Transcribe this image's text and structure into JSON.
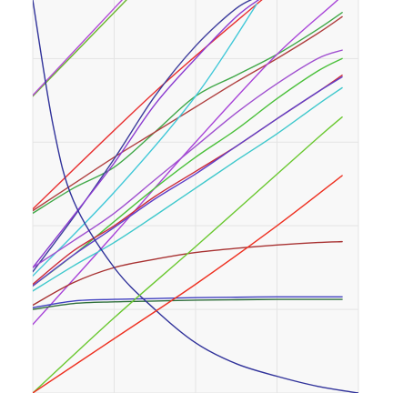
{
  "chart_data": {
    "type": "line",
    "title": "",
    "xlabel": "",
    "ylabel": "",
    "xlim": [
      0,
      4
    ],
    "ylim": [
      0,
      4.7
    ],
    "grid": true,
    "legend": "none",
    "background_color": "#f8f8f8",
    "grid_color": "#e4e4e4",
    "series": [
      {
        "color": "#6ab52e",
        "x": [
          0,
          0.5,
          1.0,
          1.5
        ],
        "y": [
          3.55,
          4.05,
          4.55,
          5.05
        ]
      },
      {
        "color": "#b24ad6",
        "x": [
          0,
          0.5,
          1.0,
          1.5
        ],
        "y": [
          3.56,
          4.08,
          4.6,
          5.12
        ]
      },
      {
        "color": "#e83030",
        "x": [
          0,
          1.5,
          2.75,
          3.2
        ],
        "y": [
          2.2,
          3.6,
          4.65,
          5.0
        ]
      },
      {
        "color": "#40a848",
        "x": [
          0,
          0.5,
          1.0,
          1.5,
          2.0,
          2.5,
          3.0,
          3.5,
          3.8
        ],
        "y": [
          2.15,
          2.45,
          2.7,
          3.12,
          3.55,
          3.8,
          4.05,
          4.35,
          4.55
        ]
      },
      {
        "color": "#b04040",
        "x": [
          0,
          0.5,
          1.0,
          1.5,
          2.0,
          2.5,
          3.0,
          3.5,
          3.8
        ],
        "y": [
          2.18,
          2.5,
          2.82,
          3.12,
          3.42,
          3.72,
          4.0,
          4.3,
          4.5
        ]
      },
      {
        "color": "#3c3c9c",
        "x": [
          0,
          0.5,
          1.0,
          1.5,
          2.0,
          2.5,
          2.8
        ],
        "y": [
          1.45,
          2.1,
          2.8,
          3.55,
          4.15,
          4.6,
          4.75
        ]
      },
      {
        "color": "#8c3cd0",
        "x": [
          0,
          0.5,
          1.0,
          1.5,
          2.0,
          2.5,
          2.8
        ],
        "y": [
          1.5,
          2.12,
          2.75,
          3.45,
          4.0,
          4.5,
          4.72
        ]
      },
      {
        "color": "#40c8d8",
        "x": [
          0,
          1.0,
          2.0,
          2.75
        ],
        "y": [
          1.4,
          2.4,
          3.55,
          4.65
        ]
      },
      {
        "color": "#a844d8",
        "x": [
          0,
          1.0,
          2.0,
          3.0,
          3.8,
          4.0
        ],
        "y": [
          0.82,
          1.9,
          3.0,
          4.05,
          4.75,
          5.0
        ]
      },
      {
        "color": "#a050d0",
        "x": [
          0,
          0.5,
          1.0,
          1.5,
          2.0,
          2.5,
          3.0,
          3.5,
          3.8
        ],
        "y": [
          1.5,
          1.82,
          2.15,
          2.55,
          2.95,
          3.35,
          3.7,
          4.0,
          4.1
        ]
      },
      {
        "color": "#4bc03b",
        "x": [
          0,
          0.5,
          1.0,
          1.5,
          2.0,
          2.5,
          3.0,
          3.5,
          3.8
        ],
        "y": [
          1.28,
          1.65,
          2.05,
          2.45,
          2.82,
          3.15,
          3.52,
          3.85,
          4.0
        ]
      },
      {
        "color": "#cc2b3a",
        "x": [
          0,
          0.5,
          1.0,
          1.5,
          2.0,
          2.5,
          3.0,
          3.5,
          3.8
        ],
        "y": [
          1.3,
          1.7,
          2.0,
          2.35,
          2.65,
          2.95,
          3.28,
          3.6,
          3.8
        ]
      },
      {
        "color": "#6040c8",
        "x": [
          0,
          0.5,
          1.0,
          1.5,
          2.0,
          2.5,
          3.0,
          3.5,
          3.8
        ],
        "y": [
          1.28,
          1.65,
          1.98,
          2.32,
          2.62,
          2.95,
          3.28,
          3.6,
          3.78
        ]
      },
      {
        "color": "#3ec8cc",
        "x": [
          0,
          0.5,
          1.0,
          1.5,
          2.0,
          2.5,
          3.0,
          3.5,
          3.8
        ],
        "y": [
          1.22,
          1.52,
          1.8,
          2.12,
          2.45,
          2.78,
          3.1,
          3.45,
          3.65
        ]
      },
      {
        "color": "#a83232",
        "x": [
          0,
          0.5,
          1.0,
          1.5,
          2.0,
          2.5,
          3.0,
          3.5,
          3.8
        ],
        "y": [
          1.05,
          1.32,
          1.5,
          1.6,
          1.68,
          1.73,
          1.77,
          1.8,
          1.81
        ]
      },
      {
        "color": "#4040c0",
        "x": [
          0,
          0.5,
          1.0,
          1.5,
          2.0,
          2.5,
          3.0,
          3.5,
          3.8
        ],
        "y": [
          1.02,
          1.1,
          1.12,
          1.13,
          1.14,
          1.145,
          1.15,
          1.15,
          1.15
        ]
      },
      {
        "color": "#2e6e3a",
        "x": [
          0,
          0.5,
          1.0,
          1.5,
          2.0,
          2.5,
          3.0,
          3.5,
          3.8
        ],
        "y": [
          1.0,
          1.07,
          1.09,
          1.1,
          1.11,
          1.115,
          1.12,
          1.12,
          1.12
        ]
      },
      {
        "color": "#30329a",
        "x": [
          0,
          0.25,
          0.5,
          1.0,
          1.5,
          2.0,
          2.5,
          3.0,
          3.5,
          4.0
        ],
        "y": [
          4.7,
          3.2,
          2.3,
          1.5,
          1.0,
          0.6,
          0.35,
          0.2,
          0.08,
          0.0
        ]
      },
      {
        "color": "#6ac830",
        "x": [
          0,
          1.0,
          2.0,
          2.75,
          3.5,
          3.8
        ],
        "y": [
          0.0,
          0.9,
          1.75,
          2.4,
          3.05,
          3.3
        ]
      },
      {
        "color": "#ee3020",
        "x": [
          0,
          1.0,
          2.0,
          3.0,
          3.8
        ],
        "y": [
          0.0,
          0.65,
          1.3,
          2.0,
          2.6
        ]
      }
    ]
  }
}
